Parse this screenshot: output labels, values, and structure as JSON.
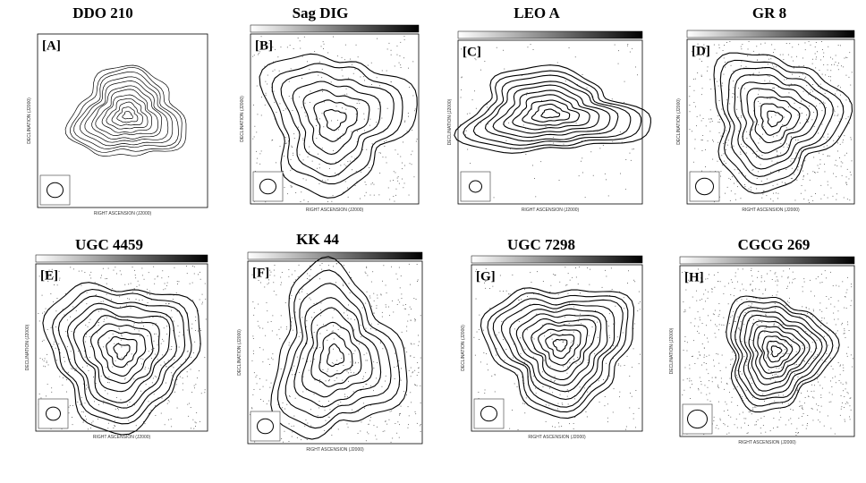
{
  "panels": [
    {
      "title": "DDO 210",
      "label": "[A]"
    },
    {
      "title": "Sag DIG",
      "label": "[B]"
    },
    {
      "title": "LEO A",
      "label": "[C]"
    },
    {
      "title": "GR 8",
      "label": "[D]"
    },
    {
      "title": "UGC 4459",
      "label": "[E]"
    },
    {
      "title": "KK 44",
      "label": "[F]"
    },
    {
      "title": "UGC 7298",
      "label": "[G]"
    },
    {
      "title": "CGCG 269",
      "label": "[H]"
    }
  ],
  "axis_labels": {
    "x": "RIGHT ASCENSION (J2000)",
    "y": "DECLINATION (J2000)"
  }
}
